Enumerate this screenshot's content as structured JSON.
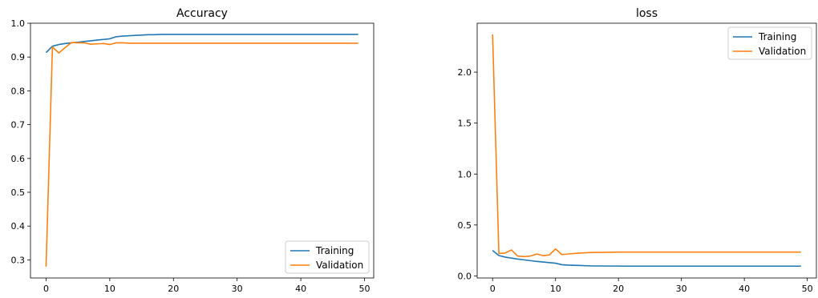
{
  "figure": {
    "background": "#ffffff"
  },
  "chart_data": [
    {
      "type": "line",
      "title": "Accuracy",
      "xlabel": "",
      "ylabel": "",
      "xlim": [
        -2.45,
        51.45
      ],
      "ylim": [
        0.2465,
        1.0
      ],
      "xticks": [
        0,
        10,
        20,
        30,
        40,
        50
      ],
      "yticks": [
        0.3,
        0.4,
        0.5,
        0.6,
        0.7,
        0.8,
        0.9,
        1.0
      ],
      "ytick_labels": [
        "0.3",
        "0.4",
        "0.5",
        "0.6",
        "0.7",
        "0.8",
        "0.9",
        "1.0"
      ],
      "grid": false,
      "legend": {
        "position": "lower-right",
        "entries": [
          "Training",
          "Validation"
        ]
      },
      "x": [
        0,
        1,
        2,
        3,
        4,
        5,
        6,
        7,
        8,
        9,
        10,
        11,
        12,
        13,
        14,
        15,
        16,
        17,
        18,
        19,
        20,
        21,
        22,
        23,
        24,
        25,
        26,
        27,
        28,
        29,
        30,
        31,
        32,
        33,
        34,
        35,
        36,
        37,
        38,
        39,
        40,
        41,
        42,
        43,
        44,
        45,
        46,
        47,
        48,
        49
      ],
      "series": [
        {
          "name": "Training",
          "color": "#1f77b4",
          "values": [
            0.913,
            0.932,
            0.937,
            0.94,
            0.942,
            0.944,
            0.946,
            0.948,
            0.95,
            0.952,
            0.954,
            0.96,
            0.962,
            0.963,
            0.964,
            0.965,
            0.966,
            0.966,
            0.967,
            0.967,
            0.967,
            0.967,
            0.967,
            0.967,
            0.967,
            0.967,
            0.967,
            0.967,
            0.967,
            0.967,
            0.967,
            0.967,
            0.967,
            0.967,
            0.967,
            0.967,
            0.967,
            0.967,
            0.967,
            0.967,
            0.967,
            0.967,
            0.967,
            0.967,
            0.967,
            0.967,
            0.967,
            0.967,
            0.967,
            0.967
          ]
        },
        {
          "name": "Validation",
          "color": "#ff7f0e",
          "values": [
            0.28,
            0.93,
            0.912,
            0.928,
            0.943,
            0.942,
            0.942,
            0.938,
            0.939,
            0.94,
            0.937,
            0.942,
            0.942,
            0.941,
            0.941,
            0.941,
            0.941,
            0.941,
            0.941,
            0.941,
            0.941,
            0.941,
            0.941,
            0.941,
            0.941,
            0.941,
            0.941,
            0.941,
            0.941,
            0.941,
            0.941,
            0.941,
            0.941,
            0.941,
            0.941,
            0.941,
            0.941,
            0.941,
            0.941,
            0.941,
            0.941,
            0.941,
            0.941,
            0.941,
            0.941,
            0.941,
            0.941,
            0.941,
            0.941,
            0.941
          ]
        }
      ]
    },
    {
      "type": "line",
      "title": "loss",
      "xlabel": "",
      "ylabel": "",
      "xlim": [
        -2.45,
        51.45
      ],
      "ylim": [
        -0.02,
        2.48
      ],
      "xticks": [
        0,
        10,
        20,
        30,
        40,
        50
      ],
      "yticks": [
        0.0,
        0.5,
        1.0,
        1.5,
        2.0
      ],
      "ytick_labels": [
        "0.0",
        "0.5",
        "1.0",
        "1.5",
        "2.0"
      ],
      "grid": false,
      "legend": {
        "position": "upper-right",
        "entries": [
          "Training",
          "Validation"
        ]
      },
      "x": [
        0,
        1,
        2,
        3,
        4,
        5,
        6,
        7,
        8,
        9,
        10,
        11,
        12,
        13,
        14,
        15,
        16,
        17,
        18,
        19,
        20,
        21,
        22,
        23,
        24,
        25,
        26,
        27,
        28,
        29,
        30,
        31,
        32,
        33,
        34,
        35,
        36,
        37,
        38,
        39,
        40,
        41,
        42,
        43,
        44,
        45,
        46,
        47,
        48,
        49
      ],
      "series": [
        {
          "name": "Training",
          "color": "#1f77b4",
          "values": [
            0.25,
            0.2,
            0.185,
            0.175,
            0.165,
            0.158,
            0.15,
            0.143,
            0.137,
            0.131,
            0.125,
            0.11,
            0.106,
            0.104,
            0.102,
            0.1,
            0.098,
            0.098,
            0.097,
            0.097,
            0.097,
            0.096,
            0.096,
            0.096,
            0.096,
            0.096,
            0.096,
            0.096,
            0.096,
            0.096,
            0.096,
            0.096,
            0.096,
            0.096,
            0.096,
            0.096,
            0.096,
            0.096,
            0.096,
            0.096,
            0.096,
            0.096,
            0.096,
            0.096,
            0.096,
            0.096,
            0.096,
            0.096,
            0.096,
            0.096
          ]
        },
        {
          "name": "Validation",
          "color": "#ff7f0e",
          "values": [
            2.37,
            0.22,
            0.225,
            0.255,
            0.195,
            0.19,
            0.195,
            0.215,
            0.2,
            0.205,
            0.265,
            0.21,
            0.215,
            0.22,
            0.225,
            0.228,
            0.23,
            0.231,
            0.232,
            0.233,
            0.234,
            0.234,
            0.234,
            0.234,
            0.234,
            0.234,
            0.234,
            0.234,
            0.234,
            0.234,
            0.234,
            0.234,
            0.234,
            0.234,
            0.234,
            0.234,
            0.234,
            0.234,
            0.234,
            0.234,
            0.234,
            0.234,
            0.234,
            0.234,
            0.234,
            0.234,
            0.234,
            0.234,
            0.234,
            0.234
          ]
        }
      ]
    }
  ]
}
